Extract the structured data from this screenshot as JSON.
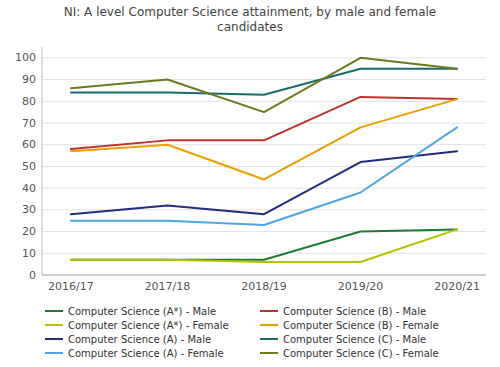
{
  "chart_data": {
    "type": "line",
    "title": "NI: A level Computer Science attainment, by male and female\ncandidates",
    "categories": [
      "2016/17",
      "2017/18",
      "2018/19",
      "2019/20",
      "2020/21"
    ],
    "series": [
      {
        "name": "Computer Science (A*) - Male",
        "color": "#1e7b34",
        "values": [
          7,
          7,
          7,
          20,
          21
        ]
      },
      {
        "name": "Computer Science (A*) - Female",
        "color": "#b5c200",
        "values": [
          7,
          7,
          6,
          6,
          21
        ]
      },
      {
        "name": "Computer Science (A) - Male",
        "color": "#1f2d7a",
        "values": [
          28,
          32,
          28,
          52,
          57
        ]
      },
      {
        "name": "Computer Science (A) - Female",
        "color": "#4da6e0",
        "values": [
          25,
          25,
          23,
          38,
          68
        ]
      },
      {
        "name": "Computer Science (B) - Male",
        "color": "#c0312b",
        "values": [
          58,
          62,
          62,
          82,
          81
        ]
      },
      {
        "name": "Computer Science (B) - Female",
        "color": "#e8a000",
        "values": [
          57,
          60,
          44,
          68,
          81
        ]
      },
      {
        "name": "Computer Science (C) - Male",
        "color": "#1a6b6b",
        "values": [
          84,
          84,
          83,
          95,
          95
        ]
      },
      {
        "name": "Computer Science (C) - Female",
        "color": "#6b7a1a",
        "values": [
          86,
          90,
          75,
          100,
          95
        ]
      }
    ],
    "ylim": [
      0,
      105
    ],
    "yticks": [
      0,
      10,
      20,
      30,
      40,
      50,
      60,
      70,
      80,
      90,
      100
    ],
    "grid": true,
    "legend": "bottom"
  }
}
